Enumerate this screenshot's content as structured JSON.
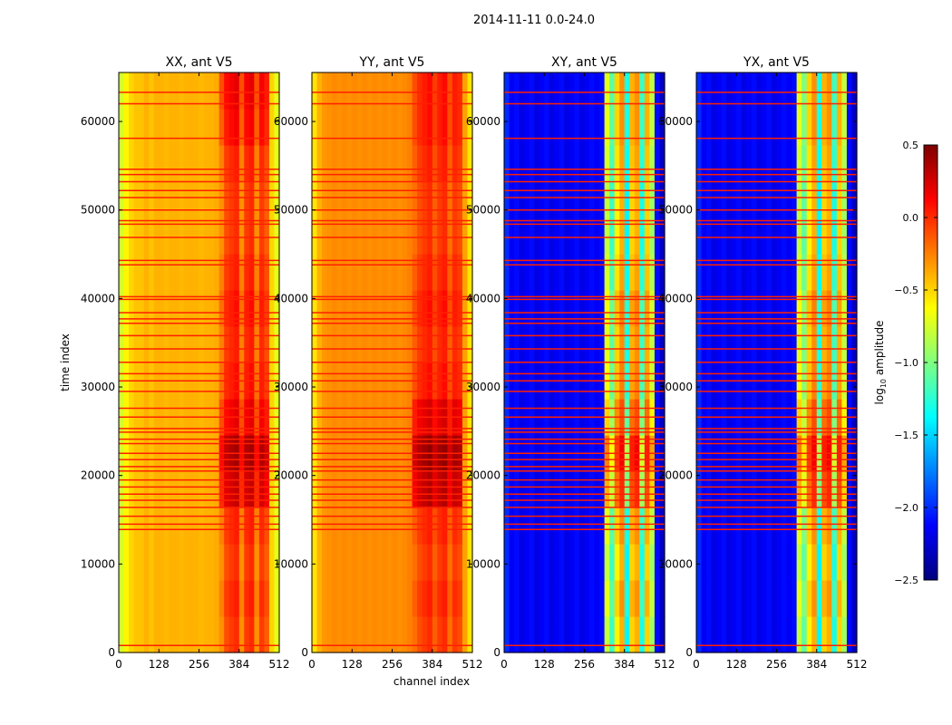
{
  "chart_data": {
    "type": "heatmap",
    "title": "2014-11-11 0.0-24.0",
    "xlabel": "channel index",
    "ylabel": "time index",
    "xlim": [
      0,
      512
    ],
    "ylim": [
      0,
      65536
    ],
    "xticks": [
      "0",
      "128",
      "256",
      "384",
      "512"
    ],
    "xtick_values": [
      0,
      128,
      256,
      384,
      512
    ],
    "yticks": [
      "0",
      "10000",
      "20000",
      "30000",
      "40000",
      "50000",
      "60000"
    ],
    "ytick_values": [
      0,
      10000,
      20000,
      30000,
      40000,
      50000,
      60000
    ],
    "colorbar": {
      "label": "log10 amplitude",
      "label_main": "log",
      "label_sub": "10",
      "label_rest": " amplitude",
      "range": [
        -2.5,
        0.5
      ],
      "colormap": "jet",
      "ticks": [
        "0.5",
        "0.0",
        "−0.5",
        "−1.0",
        "−1.5",
        "−2.0",
        "−2.5"
      ],
      "tick_values": [
        0.5,
        0.0,
        -0.5,
        -1.0,
        -1.5,
        -2.0,
        -2.5
      ]
    },
    "flag_color": "#ff2000",
    "flagged_time_indices": [
      800,
      13900,
      14500,
      15400,
      16400,
      17200,
      17900,
      18700,
      19500,
      20500,
      21000,
      21800,
      22500,
      23600,
      24100,
      24900,
      25300,
      26600,
      27600,
      29500,
      30700,
      31500,
      32800,
      34300,
      35800,
      37200,
      37700,
      38400,
      39900,
      40200,
      43800,
      44300,
      46900,
      48400,
      48800,
      50000,
      51400,
      52200,
      53200,
      54000,
      54600,
      58100,
      62000,
      63300
    ],
    "channel_band_width": 16,
    "time_block_height": 4096,
    "hot_bands": [
      20,
      29
    ],
    "panels": [
      {
        "title": "XX, ant V5",
        "band_profile": [
          -0.75,
          -0.6,
          -0.5,
          -0.45,
          -0.45,
          -0.4,
          -0.45,
          -0.4,
          -0.4,
          -0.42,
          -0.4,
          -0.4,
          -0.42,
          -0.4,
          -0.4,
          -0.4,
          -0.42,
          -0.4,
          -0.4,
          -0.38,
          -0.3,
          -0.1,
          -0.05,
          0.0,
          -0.3,
          -0.05,
          0.0,
          -0.3,
          -0.05,
          -0.15,
          -0.5,
          -0.7
        ],
        "time_boost": [
          0.0,
          0.05,
          0.0,
          0.05,
          0.3,
          0.4,
          0.2,
          0.1,
          0.05,
          0.1,
          0.05,
          0.0,
          0.0,
          0.05,
          0.15,
          0.2
        ]
      },
      {
        "title": "YY, ant V5",
        "band_profile": [
          -0.55,
          -0.4,
          -0.32,
          -0.3,
          -0.28,
          -0.3,
          -0.28,
          -0.3,
          -0.28,
          -0.3,
          -0.28,
          -0.3,
          -0.28,
          -0.3,
          -0.28,
          -0.3,
          -0.28,
          -0.3,
          -0.28,
          -0.25,
          -0.2,
          -0.1,
          -0.05,
          0.0,
          -0.15,
          -0.05,
          0.0,
          -0.2,
          -0.05,
          -0.1,
          -0.35,
          -0.55
        ],
        "time_boost": [
          0.0,
          0.05,
          0.0,
          0.05,
          0.35,
          0.45,
          0.25,
          0.1,
          0.05,
          0.1,
          0.05,
          0.0,
          0.0,
          0.05,
          0.1,
          0.1
        ]
      },
      {
        "title": "XY, ant V5",
        "band_profile": [
          -2.0,
          -2.15,
          -2.1,
          -2.2,
          -2.15,
          -2.1,
          -2.2,
          -2.15,
          -2.1,
          -2.2,
          -2.15,
          -2.1,
          -2.2,
          -2.15,
          -2.1,
          -2.2,
          -2.15,
          -2.1,
          -2.15,
          -2.1,
          -0.8,
          -1.2,
          -0.6,
          -0.4,
          -1.4,
          -0.5,
          -0.4,
          -1.3,
          -0.5,
          -0.9,
          -2.1,
          -2.3
        ],
        "time_boost": [
          0.0,
          0.1,
          0.0,
          0.1,
          0.4,
          0.55,
          0.3,
          0.15,
          0.1,
          0.15,
          0.05,
          0.0,
          0.0,
          0.05,
          0.1,
          0.1
        ]
      },
      {
        "title": "YX, ant V5",
        "band_profile": [
          -2.0,
          -2.15,
          -2.1,
          -2.2,
          -2.15,
          -2.1,
          -2.2,
          -2.15,
          -2.1,
          -2.2,
          -2.15,
          -2.1,
          -2.2,
          -2.15,
          -2.1,
          -2.2,
          -2.15,
          -2.1,
          -2.15,
          -2.1,
          -0.8,
          -1.1,
          -0.6,
          -0.4,
          -1.4,
          -0.5,
          -0.4,
          -1.3,
          -0.5,
          -0.9,
          -2.1,
          -2.3
        ],
        "time_boost": [
          0.0,
          0.1,
          0.0,
          0.1,
          0.4,
          0.55,
          0.3,
          0.15,
          0.1,
          0.15,
          0.05,
          0.0,
          0.0,
          0.05,
          0.1,
          0.1
        ]
      }
    ]
  }
}
